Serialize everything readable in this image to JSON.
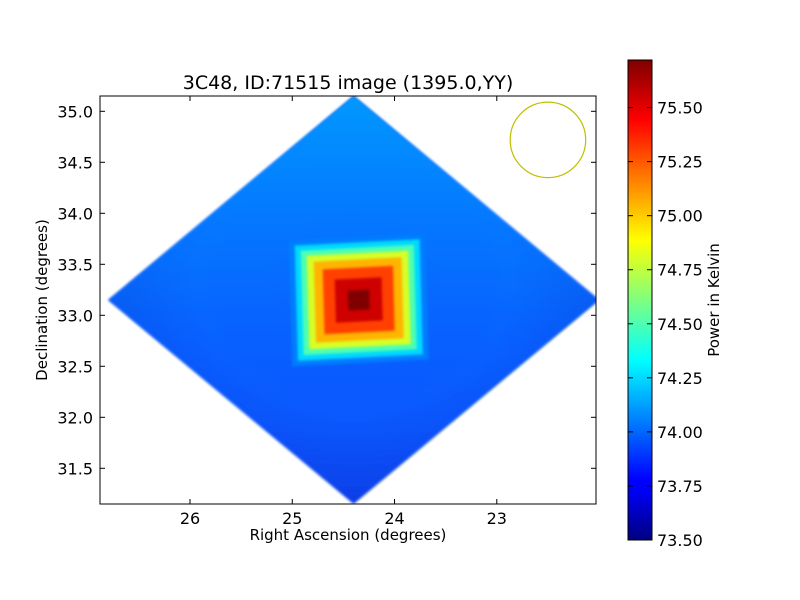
{
  "chart_data": {
    "type": "heatmap",
    "title": "3C48, ID:71515 image (1395.0,YY)",
    "xlabel": "Right Ascension (degrees)",
    "ylabel": "Declination (degrees)",
    "x_axis_reversed": true,
    "xlim": [
      26.88,
      22.03
    ],
    "ylim": [
      31.15,
      35.15
    ],
    "x_ticks": [
      26,
      25,
      24,
      23
    ],
    "y_ticks": [
      31.5,
      32.0,
      32.5,
      33.0,
      33.5,
      34.0,
      34.5,
      35.0
    ],
    "colorbar": {
      "label": "Power in Kelvin",
      "colormap": "jet",
      "range": [
        73.5,
        75.72
      ],
      "ticks": [
        73.5,
        73.75,
        74.0,
        74.25,
        74.5,
        74.75,
        75.0,
        75.25,
        75.5
      ]
    },
    "grid": false,
    "image_region": {
      "shape": "diamond",
      "center": [
        24.4,
        33.15
      ],
      "ra_halfwidth": 2.4,
      "dec_halfheight": 2.0,
      "background_level": 73.85
    },
    "peak": {
      "ra": 24.35,
      "dec": 33.15,
      "value": 75.72
    },
    "beam": {
      "ra": 22.5,
      "dec": 34.72,
      "radius_deg": 0.37,
      "color": "#bfbf00"
    }
  }
}
